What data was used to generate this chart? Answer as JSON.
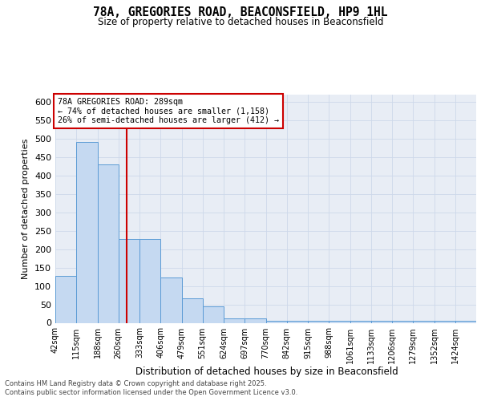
{
  "title": "78A, GREGORIES ROAD, BEACONSFIELD, HP9 1HL",
  "subtitle": "Size of property relative to detached houses in Beaconsfield",
  "xlabel": "Distribution of detached houses by size in Beaconsfield",
  "ylabel": "Number of detached properties",
  "bins": [
    42,
    115,
    188,
    260,
    333,
    406,
    479,
    551,
    624,
    697,
    770,
    842,
    915,
    988,
    1061,
    1133,
    1206,
    1279,
    1352,
    1424,
    1497
  ],
  "counts": [
    128,
    490,
    430,
    228,
    228,
    122,
    67,
    44,
    12,
    12,
    5,
    5,
    5,
    5,
    5,
    5,
    5,
    5,
    5,
    5
  ],
  "bar_color": "#c5d9f1",
  "bar_edge_color": "#5b9bd5",
  "property_size": 289,
  "annotation_line1": "78A GREGORIES ROAD: 289sqm",
  "annotation_line2": "← 74% of detached houses are smaller (1,158)",
  "annotation_line3": "26% of semi-detached houses are larger (412) →",
  "annotation_box_color": "#ffffff",
  "annotation_border_color": "#cc0000",
  "vline_color": "#cc0000",
  "grid_color": "#cdd8ea",
  "background_color": "#e8edf5",
  "ylim": [
    0,
    620
  ],
  "yticks": [
    0,
    50,
    100,
    150,
    200,
    250,
    300,
    350,
    400,
    450,
    500,
    550,
    600
  ],
  "footer_line1": "Contains HM Land Registry data © Crown copyright and database right 2025.",
  "footer_line2": "Contains public sector information licensed under the Open Government Licence v3.0."
}
